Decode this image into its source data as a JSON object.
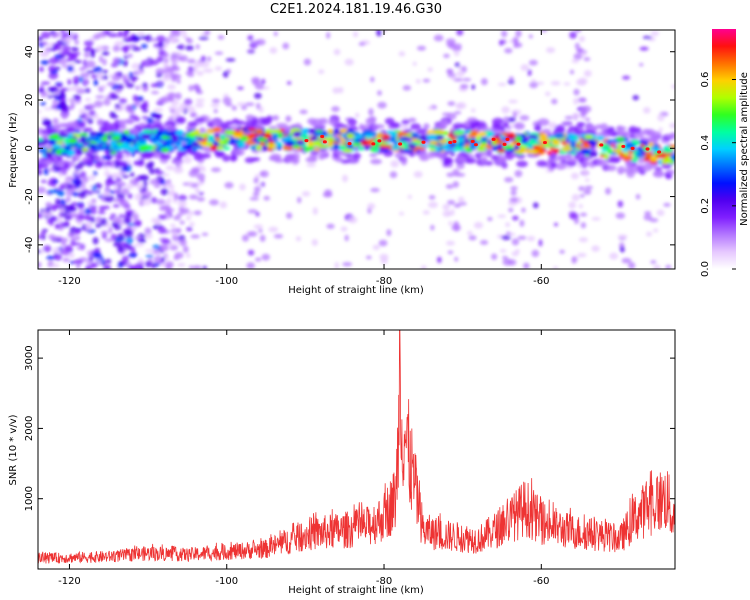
{
  "page": {
    "title": "C2E1.2024.181.19.46.G30"
  },
  "chart_data": [
    {
      "type": "heatmap",
      "title": "C2E1.2024.181.19.46.G30",
      "xlabel": "Height of straight line (km)",
      "ylabel": "Frequency (Hz)",
      "xlim": [
        -124,
        -43
      ],
      "ylim": [
        -50,
        49
      ],
      "xticks": [
        -120,
        -100,
        -80,
        -60
      ],
      "yticks": [
        -40,
        -20,
        0,
        20,
        40
      ],
      "grid": false,
      "colorbar": {
        "label": "Normalized spectral amplitude",
        "range": [
          0,
          0.76
        ],
        "ticks": [
          0.0,
          0.2,
          0.4,
          0.6
        ],
        "colors": [
          "#ffffff",
          "#e6c8ff",
          "#b478ff",
          "#8020ff",
          "#5000f0",
          "#0010ff",
          "#0070ff",
          "#00d0ff",
          "#00ffa0",
          "#30ff20",
          "#b0ff00",
          "#ffd000",
          "#ff7000",
          "#ff1010",
          "#ff0090"
        ]
      },
      "band": {
        "description_points": [
          [
            -124,
            1
          ],
          [
            -110,
            3
          ],
          [
            -100,
            4
          ],
          [
            -90,
            3.5
          ],
          [
            -80,
            3
          ],
          [
            -70,
            3
          ],
          [
            -60,
            2
          ],
          [
            -50,
            0
          ],
          [
            -43,
            -3
          ]
        ]
      }
    },
    {
      "type": "line",
      "xlabel": "Height of straight line (km)",
      "ylabel": "SNR (10 * v/v)",
      "xlim": [
        -124,
        -43
      ],
      "ylim": [
        0,
        3400
      ],
      "xticks": [
        -120,
        -100,
        -80,
        -60
      ],
      "yticks": [
        1000,
        2000,
        3000
      ],
      "grid": false,
      "series_color": "#ee3333",
      "envelope": {
        "x": [
          -124,
          -115,
          -110,
          -105,
          -100,
          -95,
          -90,
          -85,
          -82,
          -80,
          -78.5,
          -78,
          -75,
          -72,
          -68,
          -65,
          -62,
          -60,
          -57,
          -55,
          -52,
          -50,
          -48,
          -46,
          -44,
          -43
        ],
        "y": [
          220,
          260,
          330,
          300,
          360,
          420,
          720,
          820,
          900,
          1100,
          1500,
          3400,
          800,
          700,
          620,
          900,
          1300,
          980,
          820,
          760,
          700,
          620,
          1100,
          1350,
          1500,
          900
        ]
      }
    }
  ]
}
